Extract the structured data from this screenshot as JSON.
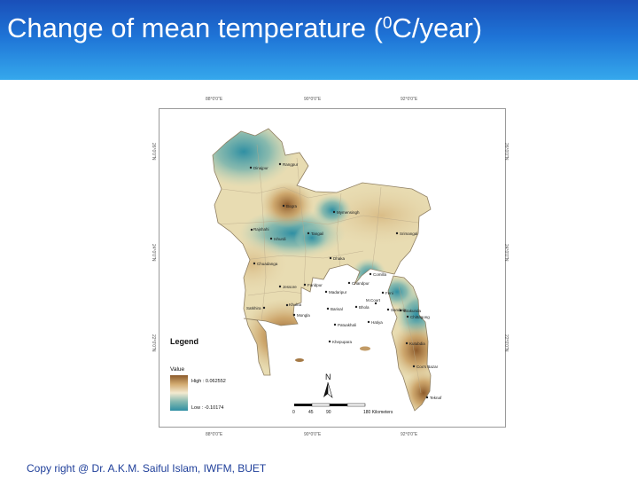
{
  "slide": {
    "title_prefix": "Change of mean temperature (",
    "title_super": "0",
    "title_suffix": "C/year)",
    "footer": "Copy right @ Dr. A.K.M. Saiful Islam, IWFM, BUET",
    "header_color_top": "#1a4fb8",
    "header_color_bottom": "#35a8ec"
  },
  "map": {
    "top_ticks": [
      "88°0'0\"E",
      "90°0'0\"E",
      "92°0'0\"E"
    ],
    "bottom_ticks": [
      "88°0'0\"E",
      "90°0'0\"E",
      "92°0'0\"E"
    ],
    "left_ticks": [
      "26°0'0\"N",
      "24°0'0\"N",
      "22°0'0\"N"
    ],
    "right_ticks": [
      "26°0'0\"N",
      "24°0'0\"N",
      "22°0'0\"N"
    ],
    "stations": [
      {
        "name": "Dinajpur"
      },
      {
        "name": "Rangpur"
      },
      {
        "name": "Bogra"
      },
      {
        "name": "Mymensingh"
      },
      {
        "name": "Srimangal"
      },
      {
        "name": "Rajshahi"
      },
      {
        "name": "Ishurdi"
      },
      {
        "name": "Tangail"
      },
      {
        "name": "Dhaka"
      },
      {
        "name": "Chuadanga"
      },
      {
        "name": "Comilla"
      },
      {
        "name": "Chandpur"
      },
      {
        "name": "Jessore"
      },
      {
        "name": "Faridpur"
      },
      {
        "name": "Madaripur"
      },
      {
        "name": "Satkhira"
      },
      {
        "name": "Khulna"
      },
      {
        "name": "Barisal"
      },
      {
        "name": "Feni"
      },
      {
        "name": "Bhola"
      },
      {
        "name": "Hatiya"
      },
      {
        "name": "Sandwip"
      },
      {
        "name": "M.Court"
      },
      {
        "name": "Sitakunda"
      },
      {
        "name": "Chittagong"
      },
      {
        "name": "Mongla"
      },
      {
        "name": "Patuakhali"
      },
      {
        "name": "Khepupara"
      },
      {
        "name": "Kutubdia"
      },
      {
        "name": "Cox's Bazar"
      },
      {
        "name": "Teknaf"
      }
    ],
    "legend": {
      "title": "Legend",
      "value_label": "Value",
      "high_label": "High : 0.062552",
      "low_label": "Low : -0.10174",
      "high_color": "#8c5a2b",
      "mid_color": "#f3ead0",
      "low_color": "#2f8fa3"
    },
    "north_label": "N",
    "scale": {
      "ticks": [
        "0",
        "45",
        "90",
        "180 Kilometers"
      ]
    }
  }
}
